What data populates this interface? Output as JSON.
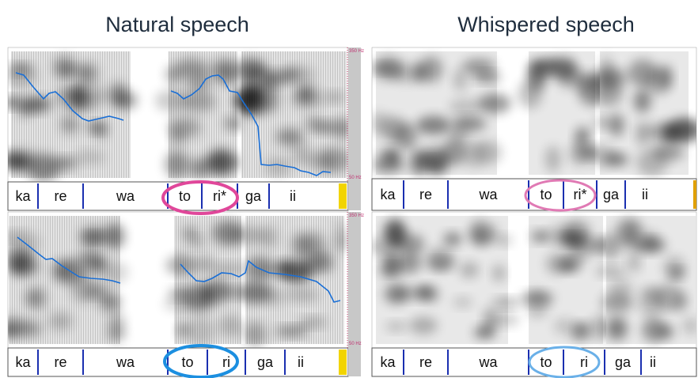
{
  "titles": [
    "Natural speech",
    "Whispered speech"
  ],
  "panels": [
    {
      "syllables": [
        "ka",
        "re",
        "wa",
        "to",
        "ri*",
        "ga",
        "ii"
      ],
      "axis_top": "350 Hz",
      "axis_bottom": "50 Hz"
    },
    {
      "syllables": [
        "ka",
        "re",
        "wa",
        "to",
        "ri",
        "ga",
        "ii"
      ],
      "axis_top": "350 Hz",
      "axis_bottom": "50 Hz"
    },
    {
      "syllables": [
        "ka",
        "re",
        "wa",
        "to",
        "ri*",
        "ga",
        "ii"
      ]
    },
    {
      "syllables": [
        "ka",
        "re",
        "wa",
        "to",
        "ri",
        "ga",
        "ii"
      ]
    }
  ]
}
